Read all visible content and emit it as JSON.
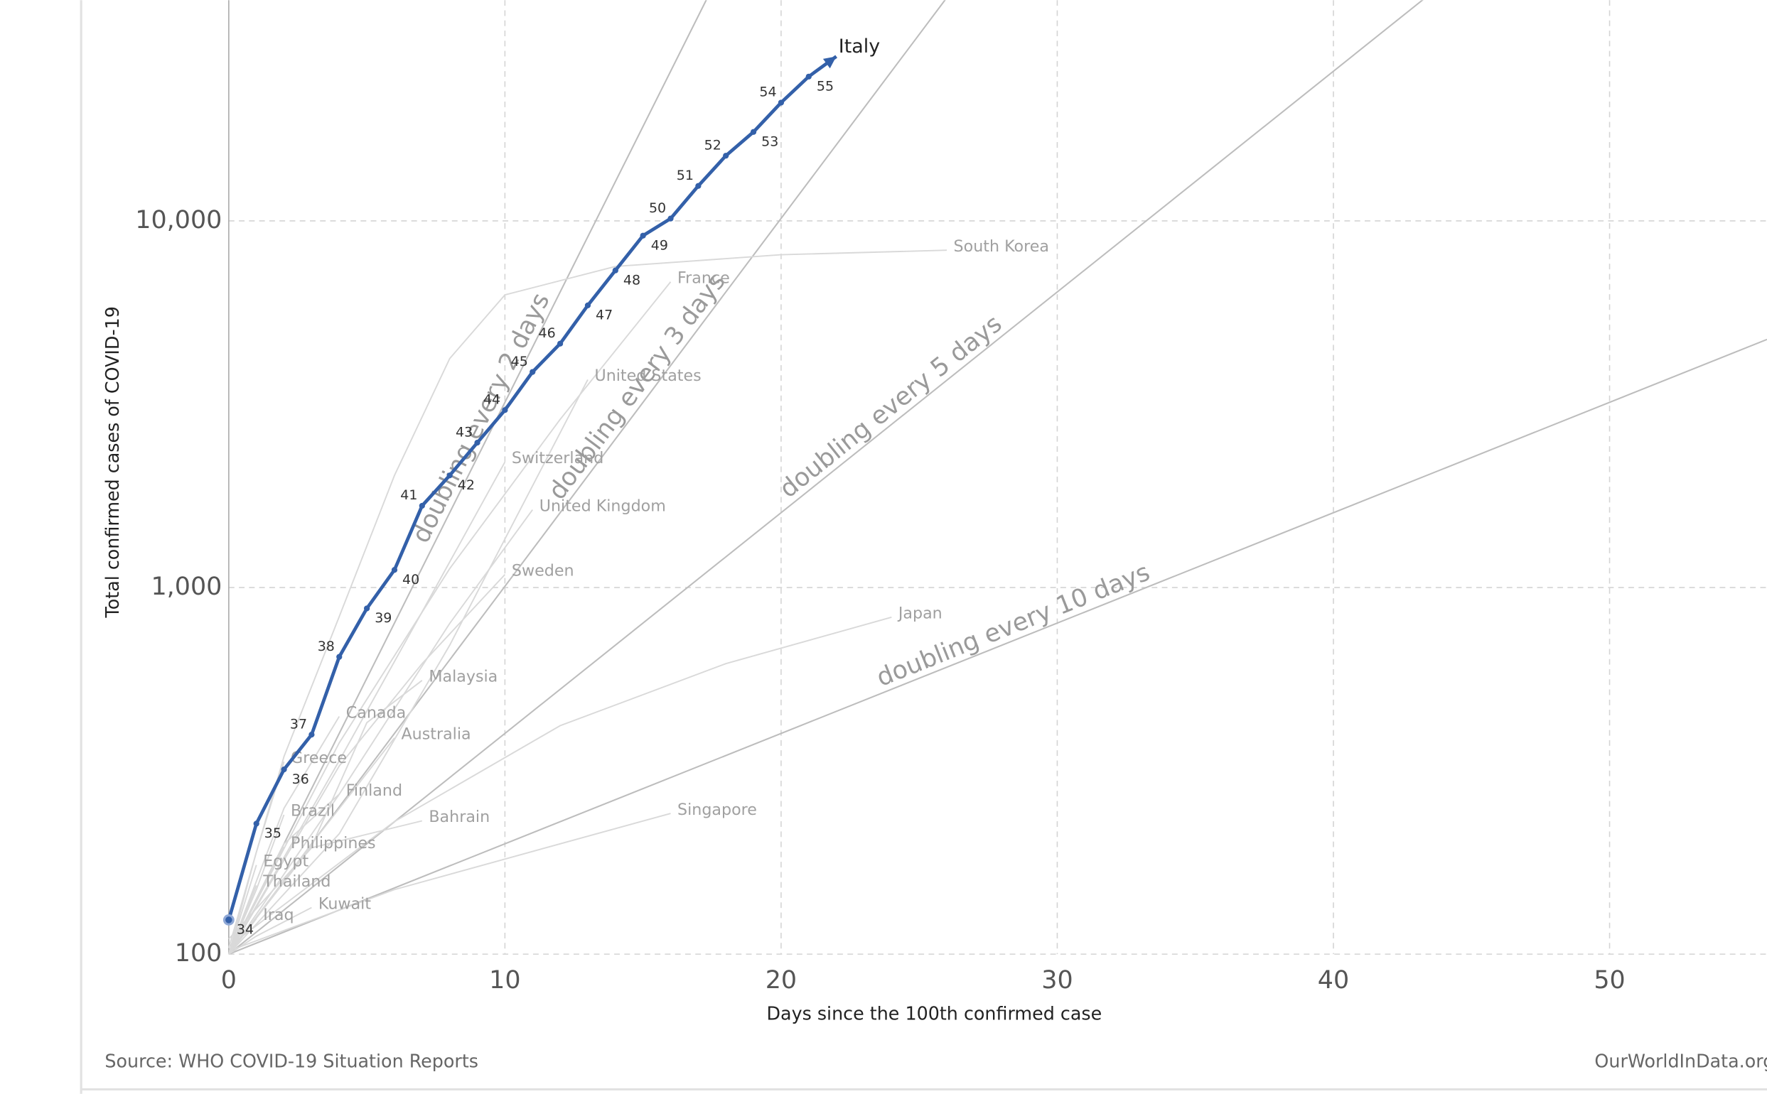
{
  "chart_data": {
    "type": "line",
    "y_axis_label": "Total confirmed cases of COVID-19",
    "x_axis_label": "Days since the 100th confirmed case",
    "source": "Source: WHO COVID-19 Situation Reports",
    "brand": "OurWorldInData.org",
    "log_y": true,
    "grid": true,
    "xlim": [
      0,
      55.7
    ],
    "ylim": [
      100,
      40000
    ],
    "xticks": [
      0,
      10,
      20,
      30,
      40,
      50
    ],
    "yticks": [
      100,
      {
        "value": 1000,
        "label": "1,000"
      },
      {
        "value": 10000,
        "label": "10,000"
      }
    ],
    "reference_lines": [
      {
        "label": "doubling every 2 days",
        "doubling_days": 2
      },
      {
        "label": "doubling every 3 days",
        "doubling_days": 3
      },
      {
        "label": "doubling every 5 days",
        "doubling_days": 5
      },
      {
        "label": "doubling every 10 days",
        "doubling_days": 10
      }
    ],
    "series": [
      {
        "name": "Italy",
        "color": "#3360a9",
        "x": [
          0,
          1,
          2,
          3,
          4,
          5,
          6,
          7,
          8,
          9,
          10,
          11,
          12,
          13,
          14,
          15,
          16,
          17,
          18,
          19,
          20,
          21,
          22
        ],
        "values": [
          124,
          227,
          319,
          397,
          647,
          877,
          1117,
          1671,
          2022,
          2484,
          3048,
          3873,
          4627,
          5883,
          7328,
          9117,
          10149,
          12456,
          15061,
          17486,
          21022,
          24755,
          28100
        ],
        "point_labels": [
          "34",
          "35",
          "36",
          "37",
          "38",
          "39",
          "40",
          "41",
          "42",
          "43",
          "44",
          "45",
          "46",
          "47",
          "48",
          "49",
          "50",
          "51",
          "52",
          "53",
          "54",
          "55",
          null
        ]
      },
      {
        "name": "South Korea",
        "color": "#d9d9d9",
        "x": [
          0,
          2,
          4,
          6,
          8,
          10,
          14,
          20,
          26
        ],
        "values": [
          104,
          346,
          833,
          2022,
          4212,
          6284,
          7513,
          8086,
          8320
        ]
      },
      {
        "name": "France",
        "color": "#d9d9d9",
        "x": [
          0,
          4,
          8,
          12,
          16
        ],
        "values": [
          100,
          377,
          1126,
          2876,
          6820
        ]
      },
      {
        "name": "United States",
        "color": "#d9d9d9",
        "x": [
          0,
          4,
          8,
          13
        ],
        "values": [
          100,
          213,
          696,
          3690
        ]
      },
      {
        "name": "Switzerland",
        "color": "#d9d9d9",
        "x": [
          0,
          4,
          7,
          10
        ],
        "values": [
          100,
          337,
          858,
          2200
        ]
      },
      {
        "name": "United Kingdom",
        "color": "#d9d9d9",
        "x": [
          0,
          4,
          8,
          11
        ],
        "values": [
          100,
          273,
          798,
          1630
        ]
      },
      {
        "name": "Sweden",
        "color": "#d9d9d9",
        "x": [
          0,
          4,
          7,
          10
        ],
        "values": [
          100,
          326,
          620,
          1085
        ]
      },
      {
        "name": "Japan",
        "color": "#d9d9d9",
        "x": [
          0,
          6,
          12,
          18,
          24
        ],
        "values": [
          105,
          230,
          420,
          620,
          830
        ]
      },
      {
        "name": "Malaysia",
        "color": "#d9d9d9",
        "x": [
          0,
          3,
          5,
          7
        ],
        "values": [
          100,
          197,
          428,
          558
        ]
      },
      {
        "name": "Canada",
        "color": "#d9d9d9",
        "x": [
          0,
          2,
          4
        ],
        "values": [
          100,
          250,
          445
        ]
      },
      {
        "name": "Australia",
        "color": "#d9d9d9",
        "x": [
          0,
          3,
          6
        ],
        "values": [
          100,
          200,
          389
        ]
      },
      {
        "name": "Greece",
        "color": "#d9d9d9",
        "x": [
          0,
          1,
          2
        ],
        "values": [
          100,
          190,
          335
        ]
      },
      {
        "name": "Finland",
        "color": "#d9d9d9",
        "x": [
          0,
          2,
          4
        ],
        "values": [
          100,
          200,
          273
        ]
      },
      {
        "name": "Bahrain",
        "color": "#d9d9d9",
        "x": [
          0,
          3,
          7
        ],
        "values": [
          110,
          195,
          231
        ]
      },
      {
        "name": "Singapore",
        "color": "#d9d9d9",
        "x": [
          0,
          6,
          12,
          16
        ],
        "values": [
          102,
          150,
          200,
          242
        ]
      },
      {
        "name": "Brazil",
        "color": "#d9d9d9",
        "x": [
          0,
          1,
          2
        ],
        "values": [
          100,
          150,
          240
        ]
      },
      {
        "name": "Philippines",
        "color": "#d9d9d9",
        "x": [
          0,
          1,
          2
        ],
        "values": [
          100,
          140,
          196
        ]
      },
      {
        "name": "Egypt",
        "color": "#d9d9d9",
        "x": [
          0,
          1
        ],
        "values": [
          100,
          175
        ]
      },
      {
        "name": "Thailand",
        "color": "#d9d9d9",
        "x": [
          0,
          1
        ],
        "values": [
          100,
          154
        ]
      },
      {
        "name": "Kuwait",
        "color": "#d9d9d9",
        "x": [
          0,
          1,
          3
        ],
        "values": [
          100,
          112,
          134
        ]
      },
      {
        "name": "Iraq",
        "color": "#d9d9d9",
        "x": [
          0,
          1
        ],
        "values": [
          100,
          125
        ]
      }
    ]
  }
}
